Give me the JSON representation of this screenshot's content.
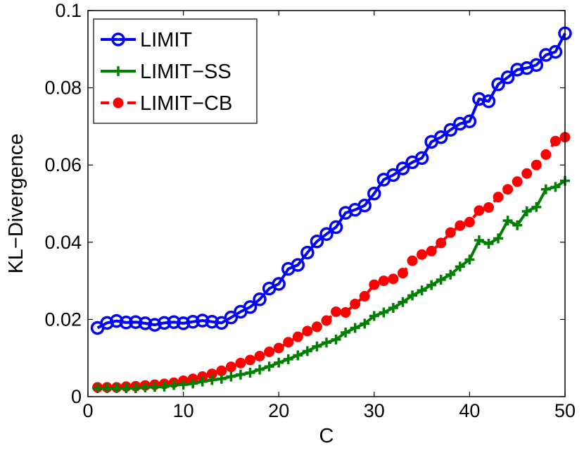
{
  "chart_data": {
    "type": "line",
    "title": "",
    "xlabel": "C",
    "ylabel": "KL−Divergence",
    "xlim": [
      0,
      50
    ],
    "ylim": [
      0,
      0.1
    ],
    "xticks": [
      "0",
      "10",
      "20",
      "30",
      "40",
      "50"
    ],
    "yticks": [
      "0",
      "0.02",
      "0.04",
      "0.06",
      "0.08",
      "0.1"
    ],
    "legend_position": "top-left",
    "grid": false,
    "x": [
      1,
      2,
      3,
      4,
      5,
      6,
      7,
      8,
      9,
      10,
      11,
      12,
      13,
      14,
      15,
      16,
      17,
      18,
      19,
      20,
      21,
      22,
      23,
      24,
      25,
      26,
      27,
      28,
      29,
      30,
      31,
      32,
      33,
      34,
      35,
      36,
      37,
      38,
      39,
      40,
      41,
      42,
      43,
      44,
      45,
      46,
      47,
      48,
      49,
      50
    ],
    "series": [
      {
        "name": "LIMIT",
        "color": "#0000ff",
        "marker": "circle-open",
        "values": [
          0.0178,
          0.0191,
          0.0196,
          0.0192,
          0.0193,
          0.019,
          0.0186,
          0.0191,
          0.0193,
          0.019,
          0.0194,
          0.0197,
          0.0194,
          0.0191,
          0.0205,
          0.022,
          0.0232,
          0.0252,
          0.028,
          0.0292,
          0.0331,
          0.0341,
          0.0373,
          0.0402,
          0.0421,
          0.0439,
          0.0476,
          0.0484,
          0.0495,
          0.0526,
          0.0562,
          0.0574,
          0.0591,
          0.0607,
          0.0618,
          0.066,
          0.0672,
          0.0691,
          0.0707,
          0.0713,
          0.0771,
          0.0765,
          0.0809,
          0.0827,
          0.0847,
          0.0851,
          0.0859,
          0.0885,
          0.0893,
          0.0941
        ]
      },
      {
        "name": "LIMIT−SS",
        "color": "#008000",
        "marker": "plus",
        "values": [
          0.0022,
          0.0022,
          0.0022,
          0.0022,
          0.0022,
          0.0024,
          0.0025,
          0.0026,
          0.003,
          0.0031,
          0.0034,
          0.0039,
          0.0043,
          0.0046,
          0.0052,
          0.0057,
          0.0062,
          0.007,
          0.0078,
          0.0088,
          0.0097,
          0.0107,
          0.0118,
          0.013,
          0.014,
          0.0148,
          0.0166,
          0.0178,
          0.0189,
          0.0209,
          0.0218,
          0.023,
          0.0245,
          0.0262,
          0.0275,
          0.0289,
          0.0303,
          0.0316,
          0.0337,
          0.0355,
          0.0405,
          0.0396,
          0.041,
          0.0456,
          0.0444,
          0.048,
          0.0491,
          0.0537,
          0.0543,
          0.0559
        ]
      },
      {
        "name": "LIMIT−CB",
        "color": "#ff0000",
        "marker": "circle-filled",
        "values": [
          0.0024,
          0.0024,
          0.0024,
          0.0026,
          0.0027,
          0.0029,
          0.0031,
          0.0033,
          0.0036,
          0.0041,
          0.0046,
          0.0052,
          0.0059,
          0.0067,
          0.0077,
          0.0087,
          0.0095,
          0.0105,
          0.0116,
          0.0126,
          0.0141,
          0.0155,
          0.017,
          0.0181,
          0.0197,
          0.022,
          0.0218,
          0.024,
          0.026,
          0.029,
          0.03,
          0.0305,
          0.032,
          0.0352,
          0.0368,
          0.0377,
          0.0398,
          0.0425,
          0.0443,
          0.0452,
          0.0482,
          0.049,
          0.0517,
          0.0537,
          0.0557,
          0.0578,
          0.06,
          0.0627,
          0.0662,
          0.0672
        ]
      }
    ]
  }
}
